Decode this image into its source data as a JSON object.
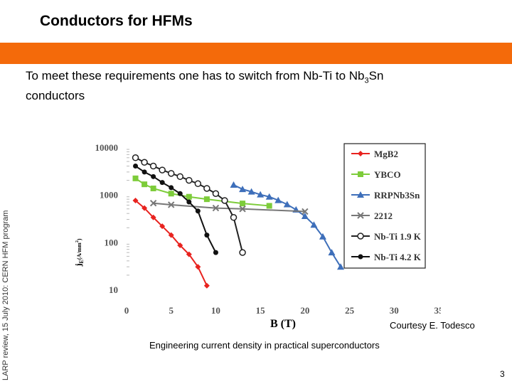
{
  "slide": {
    "title": "Conductors for HFMs",
    "subtitle_main": "To meet these requirements one has to switch from Nb-Ti to Nb",
    "subtitle_sub": "3",
    "subtitle_tail": "Sn",
    "subtitle_line2": "conductors",
    "side_text": "LARP review, 15 July 2010: CERN HFM program",
    "courtesy": "Courtesy E. Todesco",
    "caption": "Engineering current density in practical superconductors",
    "page_number": "3",
    "accent_color": "#f46a0a"
  },
  "chart_data": {
    "type": "scatter",
    "xlabel": "B (T)",
    "ylabel": "j",
    "ylabel_sub": "E",
    "ylabel_units": "(A/mm",
    "ylabel_exp": "2",
    "ylabel_close": ")",
    "x_ticks": [
      "0",
      "5",
      "10",
      "15",
      "20",
      "25",
      "30",
      "35"
    ],
    "y_ticks": [
      "10",
      "100",
      "1000",
      "10000"
    ],
    "xlim": [
      0,
      35
    ],
    "ylim": [
      10,
      10000
    ],
    "y_scale": "log",
    "legend_position": "right",
    "series": [
      {
        "name": "MgB2",
        "color": "#e8231f",
        "marker": "diamond",
        "x": [
          1,
          2,
          3,
          4,
          5,
          6,
          7,
          8,
          9
        ],
        "y": [
          750,
          520,
          330,
          215,
          140,
          85,
          55,
          30,
          12
        ]
      },
      {
        "name": "YBCO",
        "color": "#7dcc3a",
        "marker": "square",
        "x": [
          1,
          2,
          3,
          5,
          7,
          9,
          13,
          16
        ],
        "y": [
          2200,
          1650,
          1350,
          1050,
          900,
          800,
          650,
          580
        ]
      },
      {
        "name": "RRPNb3Sn",
        "color": "#3e6fba",
        "marker": "triangle",
        "x": [
          12,
          13,
          14,
          15,
          16,
          17,
          18,
          19,
          20,
          21,
          22,
          23,
          24
        ],
        "y": [
          1600,
          1300,
          1150,
          1000,
          900,
          760,
          620,
          480,
          350,
          230,
          130,
          60,
          30
        ]
      },
      {
        "name": "2212",
        "color": "#777777",
        "marker": "x",
        "x": [
          3,
          5,
          10,
          13,
          20
        ],
        "y": [
          660,
          610,
          520,
          500,
          440
        ]
      },
      {
        "name": "Nb-Ti 1.9 K",
        "color": "#222222",
        "marker": "circle-open",
        "x": [
          1,
          2,
          3,
          4,
          5,
          6,
          7,
          8,
          9,
          10,
          11,
          12,
          13
        ],
        "y": [
          6000,
          4800,
          4000,
          3300,
          2800,
          2400,
          2000,
          1700,
          1350,
          1050,
          750,
          330,
          60
        ]
      },
      {
        "name": "Nb-Ti 4.2 K",
        "color": "#111111",
        "marker": "dot",
        "x": [
          1,
          2,
          3,
          4,
          5,
          6,
          7,
          8,
          9,
          10
        ],
        "y": [
          4000,
          3000,
          2400,
          1800,
          1400,
          1050,
          700,
          450,
          140,
          60
        ]
      }
    ]
  }
}
